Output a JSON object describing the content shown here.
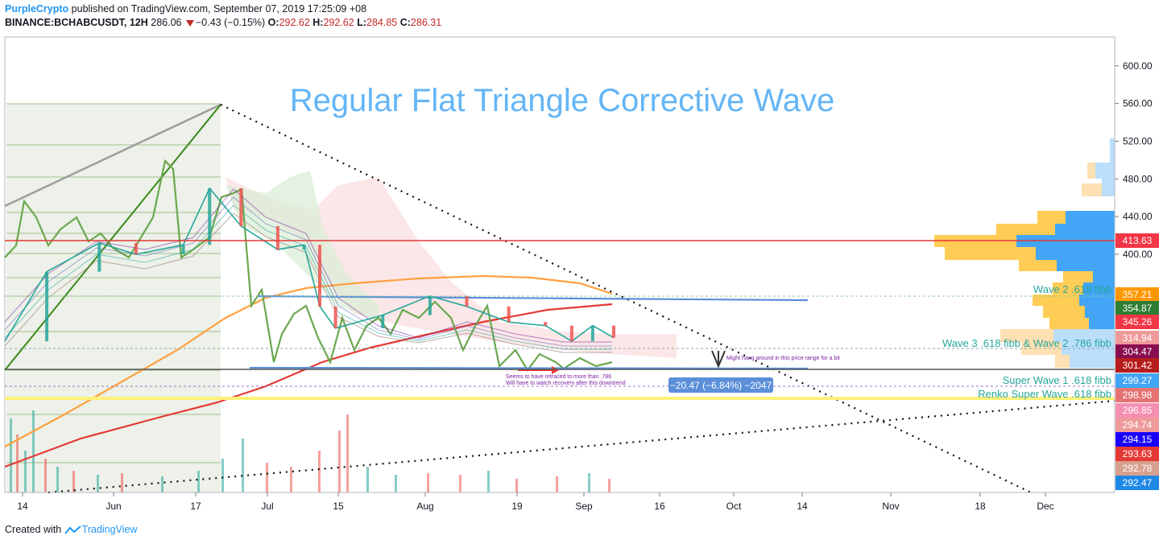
{
  "header": {
    "publisher": "PurpleCrypto",
    "published_text": "published on TradingView.com, September 07, 2019 17:25:09 +08",
    "symbol": "BINANCE:BCHABCUSDT, 12H",
    "last": "286.06",
    "change": "−0.43 (−0.15%)",
    "o_label": "O:",
    "o_value": "292.62",
    "h_label": "H:",
    "h_value": "292.62",
    "l_label": "L:",
    "l_value": "284.85",
    "c_label": "C:",
    "c_value": "286.31"
  },
  "footer": {
    "created_with": "Created with",
    "brand": "TradingView"
  },
  "colors": {
    "up": "#26a69a",
    "down": "#ef5350",
    "accent": "#2196f3",
    "title": "#64b5f6",
    "wave_text": "#26a69a"
  },
  "chart_data": {
    "type": "line",
    "title": "Regular Flat Triangle Corrective Wave",
    "y_axis": {
      "ticks": [
        600,
        560,
        520,
        480,
        440,
        400
      ],
      "tick_labels": [
        "600.00",
        "560.00",
        "520.00",
        "480.00",
        "440.00",
        "400.00"
      ]
    },
    "x_axis": {
      "tick_labels": [
        "14",
        "Jun",
        "17",
        "Jul",
        "15",
        "Aug",
        "19",
        "Sep",
        "16",
        "Oct",
        "14",
        "Nov",
        "18",
        "Dec"
      ]
    },
    "price_series": {
      "name": "BCHABCUSDT",
      "x": [
        "2019-05-14",
        "2019-05-22",
        "2019-06-01",
        "2019-06-08",
        "2019-06-17",
        "2019-06-22",
        "2019-06-28",
        "2019-07-05",
        "2019-07-10",
        "2019-07-13",
        "2019-07-16",
        "2019-07-25",
        "2019-08-03",
        "2019-08-10",
        "2019-08-18",
        "2019-08-25",
        "2019-08-30",
        "2019-09-03",
        "2019-09-07"
      ],
      "y": [
        300,
        380,
        412,
        400,
        410,
        470,
        430,
        405,
        410,
        340,
        315,
        330,
        352,
        340,
        322,
        318,
        300,
        318,
        304
      ]
    },
    "price_levels": [
      {
        "label": "413.63",
        "value": 413.63,
        "color": "#f23645"
      },
      {
        "label": "357.21",
        "value": 357.21,
        "color": "#ff9800"
      },
      {
        "label": "354.87",
        "value": 354.87,
        "color": "#2e7d32"
      },
      {
        "label": "345.26",
        "value": 345.26,
        "color": "#f23645"
      },
      {
        "label": "314.94",
        "value": 314.94,
        "color": "#ef9a9a"
      },
      {
        "label": "304.47",
        "value": 304.47,
        "color": "#880e4f"
      },
      {
        "label": "301.42",
        "value": 301.42,
        "color": "#b71c1c"
      },
      {
        "label": "299.27",
        "value": 299.27,
        "color": "#42a5f5"
      },
      {
        "label": "298.98",
        "value": 298.98,
        "color": "#e57373"
      },
      {
        "label": "296.85",
        "value": 296.85,
        "color": "#f48fb1"
      },
      {
        "label": "294.74",
        "value": 294.74,
        "color": "#ef9a9a"
      },
      {
        "label": "294.15",
        "value": 294.15,
        "color": "#1a00ff"
      },
      {
        "label": "293.63",
        "value": 293.63,
        "color": "#e53935"
      },
      {
        "label": "292.78",
        "value": 292.78,
        "color": "#d7a08f"
      },
      {
        "label": "292.47",
        "value": 292.47,
        "color": "#1e88e5"
      }
    ],
    "annotations": [
      {
        "text": "Wave 2 .618 fibb",
        "value": 357.21
      },
      {
        "text": "Wave 3 .618 fibb & Wave 2 .786 fibb",
        "value": 304.47
      },
      {
        "text": "Super Wave 1 .618 fibb",
        "value": 299.27
      },
      {
        "text": "Renko Super Wave .618 fibb",
        "value": 298.98
      }
    ],
    "notes": [
      "Seems to have retraced to more than .786",
      "Will have to watch recovery after this downtrend",
      "Might hang around in this price range for a bit"
    ],
    "measure_label": "−20.47 (−6.84%) −2047",
    "grid": false,
    "legend": "none"
  }
}
